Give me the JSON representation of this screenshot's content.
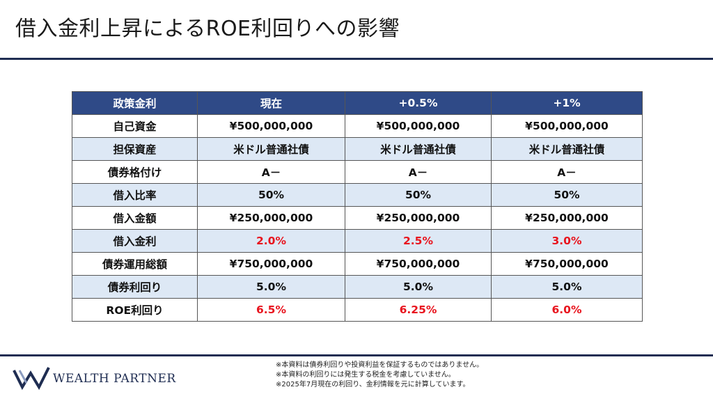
{
  "page": {
    "title": "借入金利上昇によるROE利回りへの影響"
  },
  "table": {
    "headers": [
      "政策金利",
      "現在",
      "+0.5%",
      "+1%"
    ],
    "rows": [
      {
        "label": "自己資金",
        "values": [
          "¥500,000,000",
          "¥500,000,000",
          "¥500,000,000"
        ],
        "highlight": false
      },
      {
        "label": "担保資産",
        "values": [
          "米ドル普通社債",
          "米ドル普通社債",
          "米ドル普通社債"
        ],
        "highlight": false
      },
      {
        "label": "債券格付け",
        "values": [
          "A－",
          "A－",
          "A－"
        ],
        "highlight": false
      },
      {
        "label": "借入比率",
        "values": [
          "50%",
          "50%",
          "50%"
        ],
        "highlight": false
      },
      {
        "label": "借入金額",
        "values": [
          "¥250,000,000",
          "¥250,000,000",
          "¥250,000,000"
        ],
        "highlight": false
      },
      {
        "label": "借入金利",
        "values": [
          "2.0%",
          "2.5%",
          "3.0%"
        ],
        "highlight": true
      },
      {
        "label": "債券運用総額",
        "values": [
          "¥750,000,000",
          "¥750,000,000",
          "¥750,000,000"
        ],
        "highlight": false
      },
      {
        "label": "債券利回り",
        "values": [
          "5.0%",
          "5.0%",
          "5.0%"
        ],
        "highlight": false
      },
      {
        "label": "ROE利回り",
        "values": [
          "6.5%",
          "6.25%",
          "6.0%"
        ],
        "highlight": true
      }
    ]
  },
  "footer": {
    "logo_text": "WEALTH PARTNER",
    "notes": [
      "※本資料は債券利回りや投資利益を保証するものではありません。",
      "※本資料の利回りには発生する税金を考慮していません。",
      "※2025年7月現在の利回り、金利情報を元に計算しています。"
    ]
  },
  "colors": {
    "header_bg": "#2f4a87",
    "alt_row_bg": "#dde8f5",
    "highlight_text": "#e8141e",
    "rule": "#1f2d52"
  }
}
